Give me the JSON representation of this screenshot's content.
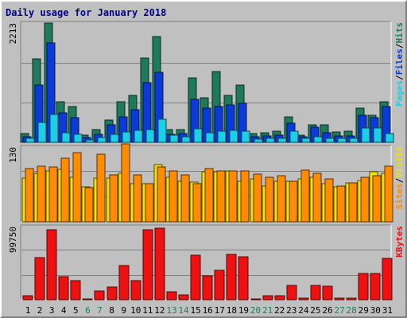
{
  "title": "Daily usage for January 2018",
  "colors": {
    "hits": "#1e7a5a",
    "files": "#0a3ad8",
    "pages": "#1ccfe8",
    "visits": "#f2e200",
    "sites": "#ff8c00",
    "kbytes": "#ee1111",
    "weekday_label": "#000000",
    "weekend_label": "#1a8060"
  },
  "chart_data": [
    {
      "type": "bar",
      "panel": "hits-files-pages",
      "ylabel_max": "2213",
      "ylim": [
        0,
        2213
      ],
      "legend": [
        "Pages",
        "/",
        "Files",
        "/",
        "Hits"
      ],
      "categories": [
        "1",
        "2",
        "3",
        "4",
        "5",
        "6",
        "7",
        "8",
        "9",
        "10",
        "11",
        "12",
        "13",
        "14",
        "15",
        "16",
        "17",
        "18",
        "19",
        "20",
        "21",
        "22",
        "23",
        "24",
        "25",
        "26",
        "27",
        "28",
        "29",
        "30",
        "31"
      ],
      "weekend": [
        "6",
        "7",
        "13",
        "14",
        "20",
        "21",
        "27",
        "28"
      ],
      "series": [
        {
          "name": "Hits",
          "values": [
            160,
            1550,
            2213,
            750,
            660,
            140,
            230,
            420,
            750,
            870,
            1570,
            1960,
            240,
            230,
            1190,
            820,
            1320,
            870,
            1060,
            160,
            170,
            210,
            470,
            140,
            330,
            330,
            190,
            200,
            640,
            500,
            750
          ]
        },
        {
          "name": "Files",
          "values": [
            100,
            1060,
            1850,
            540,
            450,
            90,
            150,
            320,
            470,
            610,
            1100,
            1300,
            150,
            160,
            800,
            630,
            670,
            690,
            720,
            100,
            120,
            140,
            360,
            100,
            280,
            180,
            120,
            120,
            500,
            460,
            670
          ]
        },
        {
          "name": "Pages",
          "values": [
            75,
            370,
            520,
            170,
            150,
            40,
            90,
            150,
            190,
            220,
            230,
            430,
            130,
            100,
            250,
            180,
            210,
            220,
            200,
            60,
            70,
            80,
            200,
            70,
            110,
            80,
            70,
            70,
            260,
            270,
            160
          ]
        }
      ]
    },
    {
      "type": "bar",
      "panel": "visits-sites",
      "ylabel_max": "130",
      "ylim": [
        0,
        130
      ],
      "legend": [
        "Sites",
        "/",
        "Visits"
      ],
      "categories": [
        "1",
        "2",
        "3",
        "4",
        "5",
        "6",
        "7",
        "8",
        "9",
        "10",
        "11",
        "12",
        "13",
        "14",
        "15",
        "16",
        "17",
        "18",
        "19",
        "20",
        "21",
        "22",
        "23",
        "24",
        "25",
        "26",
        "27",
        "28",
        "29",
        "30",
        "31"
      ],
      "series": [
        {
          "name": "Visits",
          "values": [
            76,
            84,
            89,
            91,
            77,
            61,
            76,
            76,
            85,
            66,
            67,
            99,
            77,
            71,
            69,
            87,
            87,
            88,
            70,
            75,
            62,
            71,
            70,
            74,
            78,
            66,
            61,
            68,
            72,
            87,
            84
          ]
        },
        {
          "name": "Sites",
          "values": [
            92,
            97,
            95,
            110,
            120,
            59,
            117,
            82,
            135,
            81,
            66,
            96,
            88,
            82,
            67,
            93,
            89,
            89,
            89,
            83,
            78,
            80,
            70,
            90,
            85,
            75,
            62,
            68,
            78,
            80,
            97
          ]
        }
      ]
    },
    {
      "type": "bar",
      "panel": "kbytes",
      "ylabel_max": "99750",
      "ylim": [
        0,
        99750
      ],
      "legend": [
        "KBytes"
      ],
      "categories": [
        "1",
        "2",
        "3",
        "4",
        "5",
        "6",
        "7",
        "8",
        "9",
        "10",
        "11",
        "12",
        "13",
        "14",
        "15",
        "16",
        "17",
        "18",
        "19",
        "20",
        "21",
        "22",
        "23",
        "24",
        "25",
        "26",
        "27",
        "28",
        "29",
        "30",
        "31"
      ],
      "series": [
        {
          "name": "KBytes",
          "values": [
            5000,
            57000,
            95000,
            31000,
            26000,
            1600,
            12000,
            17000,
            47000,
            26000,
            95000,
            98000,
            11000,
            7000,
            61000,
            33000,
            40000,
            62000,
            59000,
            1600,
            5500,
            5000,
            20000,
            1800,
            20000,
            18000,
            2300,
            2300,
            36000,
            36000,
            56000
          ]
        }
      ]
    }
  ]
}
